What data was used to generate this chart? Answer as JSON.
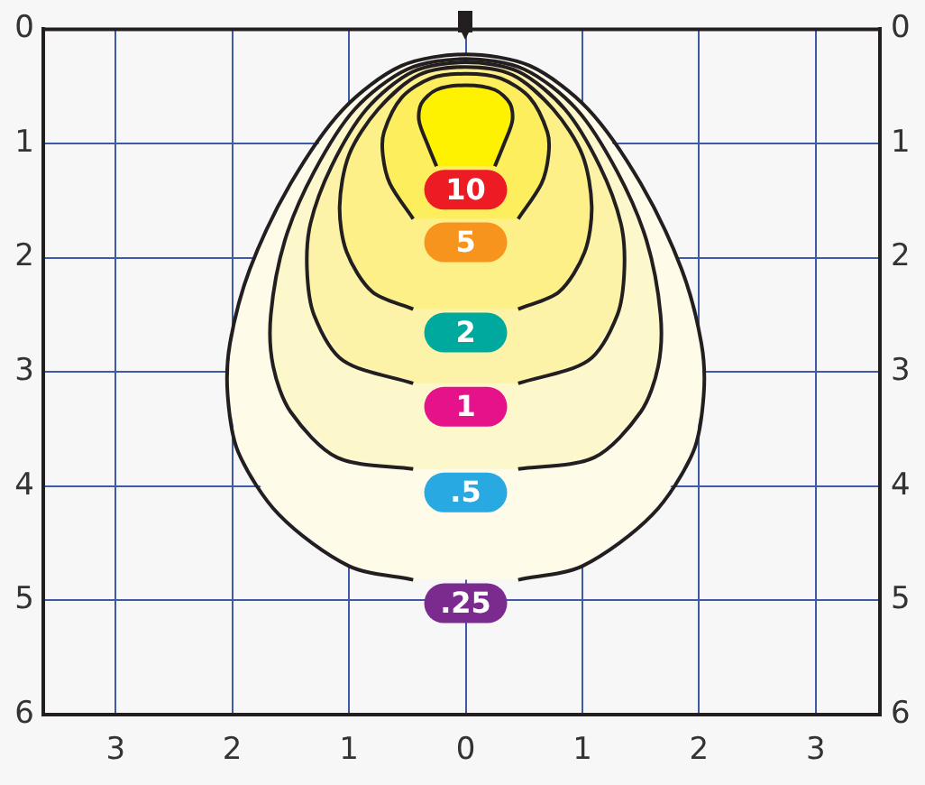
{
  "chart_data": {
    "type": "area",
    "xlim": [
      -3.62,
      3.55
    ],
    "xticks": [
      {
        "value": -3,
        "label": "3"
      },
      {
        "value": -2,
        "label": "2"
      },
      {
        "value": -1,
        "label": "1"
      },
      0,
      1,
      2,
      3
    ],
    "ylim": [
      6,
      0
    ],
    "yticks": [
      0,
      1,
      2,
      3,
      4,
      5,
      6
    ],
    "y2lim": [
      6,
      0
    ],
    "y2ticks": [
      0,
      1,
      2,
      3,
      4,
      5,
      6
    ],
    "grid": true,
    "legend": false,
    "series": [
      {
        "name": ".25",
        "color": "#fefbe9",
        "x": [
          -0.45,
          -1.0,
          -1.6,
          -1.95,
          -2.04,
          -2.02,
          -1.85,
          -1.5,
          -1.05,
          -0.55,
          0,
          0.55,
          1.05,
          1.5,
          1.85,
          2.02,
          2.04,
          1.95,
          1.6,
          1.0,
          0.45
        ],
        "values": [
          4.82,
          4.7,
          4.25,
          3.7,
          3.2,
          2.75,
          2.1,
          1.35,
          0.7,
          0.32,
          0.22,
          0.32,
          0.7,
          1.35,
          2.1,
          2.75,
          3.2,
          3.7,
          4.25,
          4.7,
          4.82
        ]
      },
      {
        "name": ".5",
        "color": "#fdf7cc",
        "x": [
          -0.45,
          -1.1,
          -1.5,
          -1.65,
          -1.67,
          -1.55,
          -1.3,
          -0.95,
          -0.5,
          0,
          0.5,
          0.95,
          1.3,
          1.55,
          1.67,
          1.65,
          1.5,
          1.1,
          0.45
        ],
        "values": [
          3.85,
          3.75,
          3.35,
          2.95,
          2.5,
          1.85,
          1.25,
          0.7,
          0.35,
          0.26,
          0.35,
          0.7,
          1.25,
          1.85,
          2.5,
          2.95,
          3.35,
          3.75,
          3.85
        ]
      },
      {
        "name": "1",
        "color": "#fdf3a8",
        "x": [
          -0.45,
          -1.05,
          -1.3,
          -1.36,
          -1.33,
          -1.15,
          -0.85,
          -0.45,
          0,
          0.45,
          0.85,
          1.15,
          1.33,
          1.36,
          1.3,
          1.05,
          0.45
        ],
        "values": [
          3.1,
          2.9,
          2.5,
          2.1,
          1.7,
          1.2,
          0.7,
          0.37,
          0.29,
          0.37,
          0.7,
          1.2,
          1.7,
          2.1,
          2.5,
          2.9,
          3.1
        ]
      },
      {
        "name": "2",
        "color": "#fdf088",
        "x": [
          -0.45,
          -0.8,
          -1.02,
          -1.08,
          -1.0,
          -0.75,
          -0.4,
          0,
          0.4,
          0.75,
          1.0,
          1.08,
          1.02,
          0.8,
          0.45
        ],
        "values": [
          2.45,
          2.3,
          1.95,
          1.55,
          1.1,
          0.7,
          0.4,
          0.33,
          0.4,
          0.7,
          1.1,
          1.55,
          1.95,
          2.3,
          2.45
        ]
      },
      {
        "name": "5",
        "color": "#fdee5e",
        "x": [
          -0.45,
          -0.65,
          -0.71,
          -0.7,
          -0.55,
          -0.3,
          0,
          0.3,
          0.55,
          0.7,
          0.71,
          0.65,
          0.45
        ],
        "values": [
          1.66,
          1.35,
          1.1,
          0.9,
          0.6,
          0.43,
          0.39,
          0.43,
          0.6,
          0.9,
          1.1,
          1.35,
          1.66
        ]
      },
      {
        "name": "10",
        "color": "#fff200",
        "x": [
          -0.25,
          -0.33,
          -0.4,
          -0.38,
          -0.25,
          0,
          0.25,
          0.38,
          0.4,
          0.33,
          0.25
        ],
        "values": [
          1.2,
          1.0,
          0.8,
          0.65,
          0.53,
          0.49,
          0.53,
          0.65,
          0.8,
          1.0,
          1.2
        ]
      }
    ]
  }
}
